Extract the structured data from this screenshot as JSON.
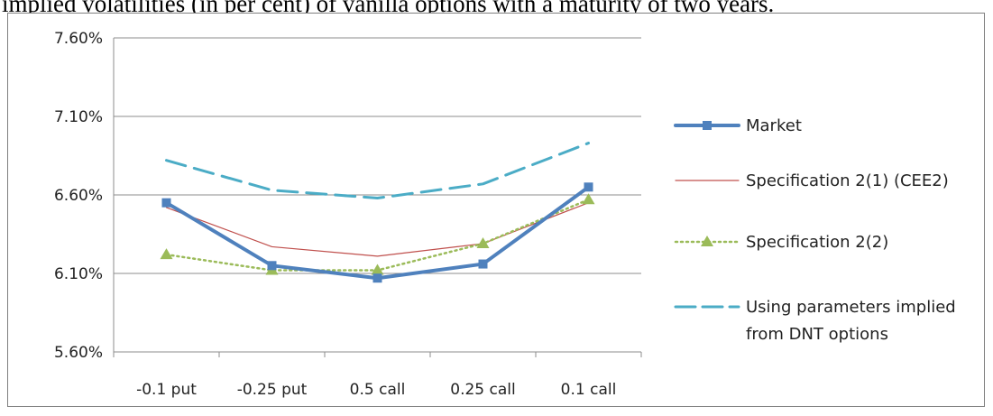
{
  "caption": "implied volatilities (in per cent) of vanilla options with a maturity of two years.",
  "chart_data": {
    "type": "line",
    "categories": [
      "-0.1 put",
      "-0.25 put",
      "0.5 call",
      "0.25 call",
      "0.1 call"
    ],
    "ylim": [
      5.6,
      7.6
    ],
    "y_ticks": [
      "5.60%",
      "6.10%",
      "6.60%",
      "7.10%",
      "7.60%"
    ],
    "y_tick_values": [
      5.6,
      6.1,
      6.6,
      7.1,
      7.6
    ],
    "grid": true,
    "legend_position": "right",
    "series": [
      {
        "name": "Market",
        "values": [
          6.55,
          6.15,
          6.07,
          6.16,
          6.65
        ],
        "color": "#4F81BD",
        "style": "solid-thick",
        "marker": "square"
      },
      {
        "name": "Specification 2(1) (CEE2)",
        "values": [
          6.52,
          6.27,
          6.21,
          6.29,
          6.55
        ],
        "color": "#C0504D",
        "style": "solid-thin",
        "marker": "none"
      },
      {
        "name": "Specification 2(2)",
        "values": [
          6.22,
          6.12,
          6.12,
          6.29,
          6.57
        ],
        "color": "#9BBB59",
        "style": "dotted",
        "marker": "triangle"
      },
      {
        "name": "Using parameters implied from DNT options",
        "name_lines": [
          "Using parameters implied",
          "from DNT options"
        ],
        "values": [
          6.82,
          6.63,
          6.58,
          6.67,
          6.93
        ],
        "color": "#4BACC6",
        "style": "dashed",
        "marker": "none"
      }
    ]
  }
}
